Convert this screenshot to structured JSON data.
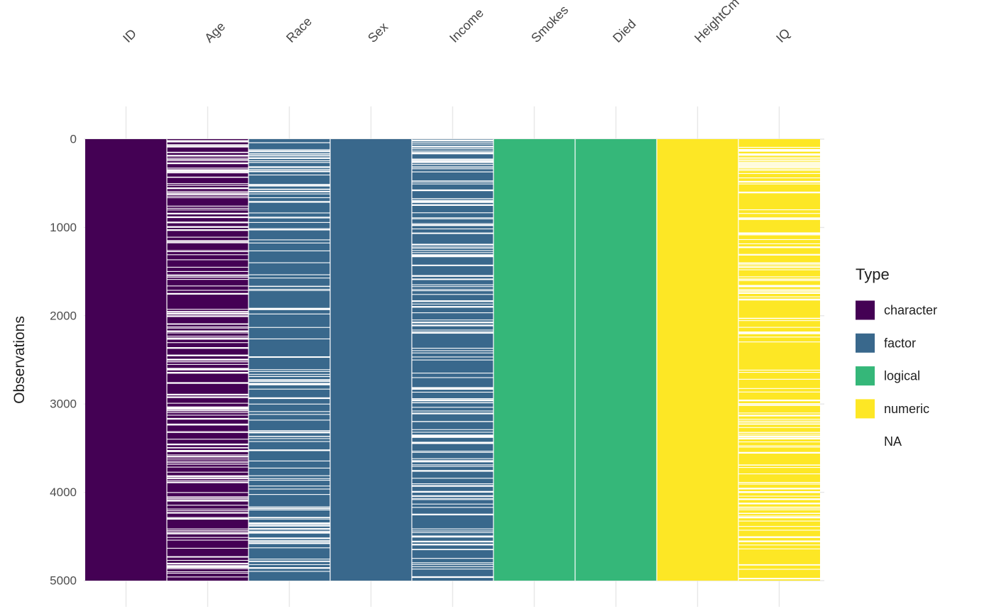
{
  "chart_data": {
    "type": "heatmap",
    "title": "",
    "ylabel": "Observations",
    "legend_title": "Type",
    "n_observations": 5000,
    "y_ticks": [
      "0",
      "1000",
      "2000",
      "3000",
      "4000",
      "5000"
    ],
    "y_tick_values": [
      0,
      1000,
      2000,
      3000,
      4000,
      5000
    ],
    "grid": true,
    "legend_position": "right",
    "columns": [
      {
        "name": "ID",
        "type": "character",
        "na_stripes": 0,
        "na_top_cluster": 0
      },
      {
        "name": "Age",
        "type": "character",
        "na_stripes": 150,
        "na_top_cluster": 14
      },
      {
        "name": "Race",
        "type": "factor",
        "na_stripes": 95,
        "na_top_cluster": 10
      },
      {
        "name": "Sex",
        "type": "factor",
        "na_stripes": 0,
        "na_top_cluster": 0
      },
      {
        "name": "Income",
        "type": "factor",
        "na_stripes": 125,
        "na_top_cluster": 20
      },
      {
        "name": "Smokes",
        "type": "logical",
        "na_stripes": 0,
        "na_top_cluster": 0
      },
      {
        "name": "Died",
        "type": "logical",
        "na_stripes": 0,
        "na_top_cluster": 0
      },
      {
        "name": "HeightCm",
        "type": "numeric",
        "na_stripes": 0,
        "na_top_cluster": 0
      },
      {
        "name": "IQ",
        "type": "numeric",
        "na_stripes": 115,
        "na_top_cluster": 18
      }
    ],
    "type_colors": {
      "character": "#440154",
      "factor": "#39688C",
      "logical": "#35B779",
      "numeric": "#FDE725",
      "NA": "#FFFFFF"
    },
    "na_stripe_color": "#FFFFFF",
    "legend_entries": [
      {
        "label": "character",
        "type": "character"
      },
      {
        "label": "factor",
        "type": "factor"
      },
      {
        "label": "logical",
        "type": "logical"
      },
      {
        "label": "numeric",
        "type": "numeric"
      },
      {
        "label": "NA",
        "type": "NA"
      }
    ]
  }
}
